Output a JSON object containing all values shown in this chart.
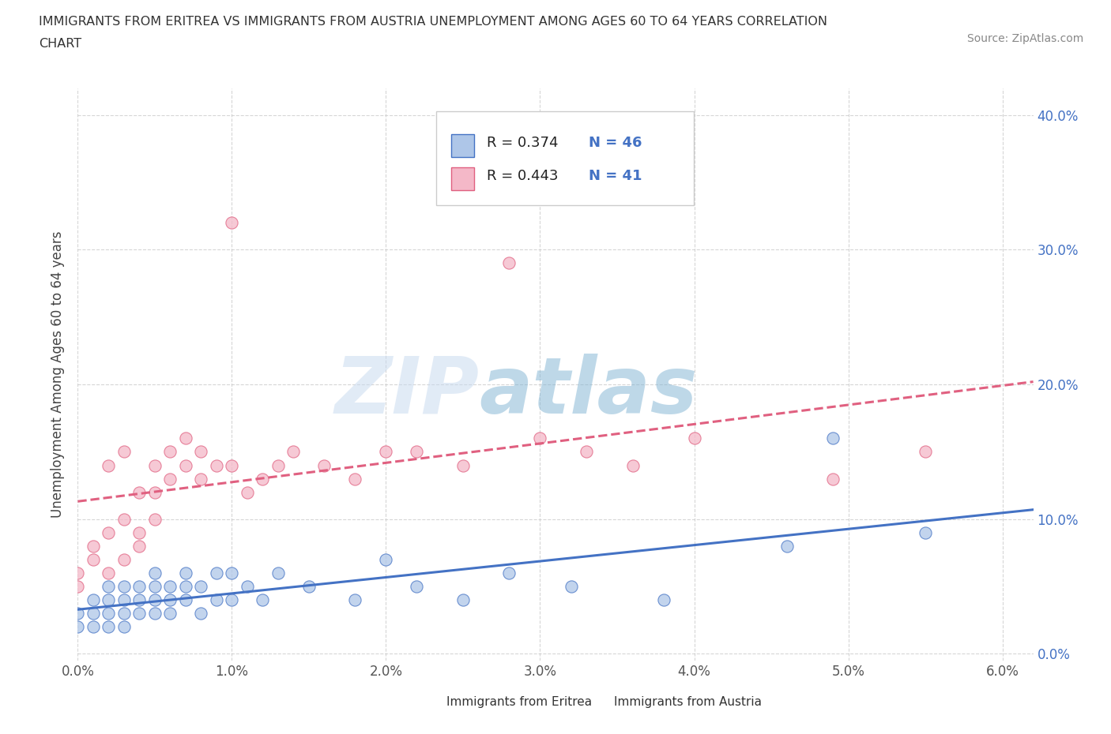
{
  "title_line1": "IMMIGRANTS FROM ERITREA VS IMMIGRANTS FROM AUSTRIA UNEMPLOYMENT AMONG AGES 60 TO 64 YEARS CORRELATION",
  "title_line2": "CHART",
  "source": "Source: ZipAtlas.com",
  "xlabel_ticks": [
    "0.0%",
    "1.0%",
    "2.0%",
    "3.0%",
    "4.0%",
    "5.0%",
    "6.0%"
  ],
  "ylabel_ticks": [
    "0.0%",
    "10.0%",
    "20.0%",
    "30.0%",
    "40.0%"
  ],
  "xlim": [
    0.0,
    0.062
  ],
  "ylim": [
    -0.005,
    0.42
  ],
  "ylabel": "Unemployment Among Ages 60 to 64 years",
  "legend_eritrea_label": "Immigrants from Eritrea",
  "legend_austria_label": "Immigrants from Austria",
  "R_eritrea": 0.374,
  "N_eritrea": 46,
  "R_austria": 0.443,
  "N_austria": 41,
  "color_eritrea": "#aec6e8",
  "color_austria": "#f4b8c8",
  "color_eritrea_line": "#4472c4",
  "color_austria_line": "#e06080",
  "watermark_zip": "ZIP",
  "watermark_atlas": "atlas",
  "eritrea_x": [
    0.0,
    0.0,
    0.001,
    0.001,
    0.001,
    0.002,
    0.002,
    0.002,
    0.002,
    0.003,
    0.003,
    0.003,
    0.003,
    0.004,
    0.004,
    0.004,
    0.005,
    0.005,
    0.005,
    0.005,
    0.006,
    0.006,
    0.006,
    0.007,
    0.007,
    0.007,
    0.008,
    0.008,
    0.009,
    0.009,
    0.01,
    0.01,
    0.011,
    0.012,
    0.013,
    0.015,
    0.018,
    0.02,
    0.022,
    0.025,
    0.028,
    0.032,
    0.038,
    0.046,
    0.049,
    0.055
  ],
  "eritrea_y": [
    0.03,
    0.02,
    0.04,
    0.02,
    0.03,
    0.03,
    0.04,
    0.02,
    0.05,
    0.04,
    0.03,
    0.05,
    0.02,
    0.04,
    0.03,
    0.05,
    0.04,
    0.03,
    0.05,
    0.06,
    0.04,
    0.05,
    0.03,
    0.05,
    0.06,
    0.04,
    0.05,
    0.03,
    0.06,
    0.04,
    0.06,
    0.04,
    0.05,
    0.04,
    0.06,
    0.05,
    0.04,
    0.07,
    0.05,
    0.04,
    0.06,
    0.05,
    0.04,
    0.08,
    0.16,
    0.09
  ],
  "austria_x": [
    0.0,
    0.0,
    0.001,
    0.001,
    0.002,
    0.002,
    0.002,
    0.003,
    0.003,
    0.003,
    0.004,
    0.004,
    0.004,
    0.005,
    0.005,
    0.005,
    0.006,
    0.006,
    0.007,
    0.007,
    0.008,
    0.008,
    0.009,
    0.01,
    0.01,
    0.011,
    0.012,
    0.013,
    0.014,
    0.016,
    0.018,
    0.02,
    0.022,
    0.025,
    0.028,
    0.03,
    0.033,
    0.036,
    0.04,
    0.049,
    0.055
  ],
  "austria_y": [
    0.05,
    0.06,
    0.07,
    0.08,
    0.06,
    0.09,
    0.14,
    0.07,
    0.1,
    0.15,
    0.08,
    0.12,
    0.09,
    0.1,
    0.14,
    0.12,
    0.13,
    0.15,
    0.14,
    0.16,
    0.13,
    0.15,
    0.14,
    0.14,
    0.32,
    0.12,
    0.13,
    0.14,
    0.15,
    0.14,
    0.13,
    0.15,
    0.15,
    0.14,
    0.29,
    0.16,
    0.15,
    0.14,
    0.16,
    0.13,
    0.15
  ]
}
